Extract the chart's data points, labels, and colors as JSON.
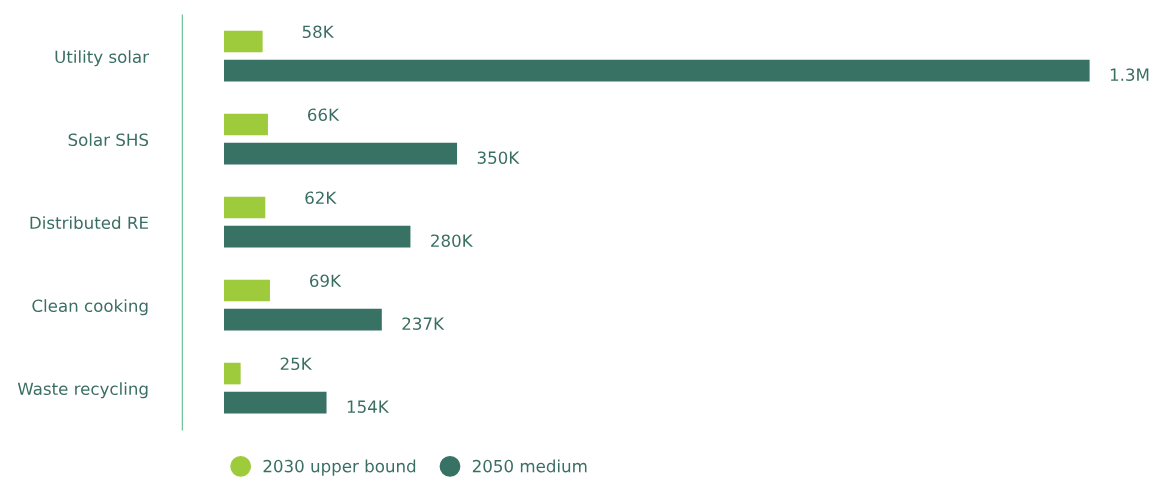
{
  "chart_data": {
    "type": "bar",
    "orientation": "horizontal",
    "categories": [
      "Utility solar",
      "Solar SHS",
      "Distributed RE",
      "Clean cooking",
      "Waste recycling"
    ],
    "series": [
      {
        "name": "2030 upper bound",
        "color": "#9dcb3b",
        "values": [
          58000,
          66000,
          62000,
          69000,
          25000
        ],
        "value_labels": [
          "58K",
          "66K",
          "62K",
          "69K",
          "25K"
        ]
      },
      {
        "name": "2050 medium",
        "color": "#377264",
        "values": [
          1300000,
          350000,
          280000,
          237000,
          154000
        ],
        "value_labels": [
          "1.3M",
          "350K",
          "280K",
          "237K",
          "154K"
        ]
      }
    ],
    "legend": "bottom",
    "grid": false,
    "tick_labels": "y"
  }
}
